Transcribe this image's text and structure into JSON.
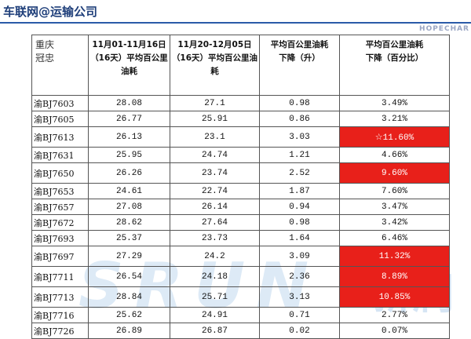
{
  "header": {
    "title": "车联网@运输公司",
    "logo": "HOPECHAR"
  },
  "watermark": {
    "latin": "SRUN",
    "chinese": "新润"
  },
  "table": {
    "columns": [
      [
        "重庆",
        "冠忠"
      ],
      [
        "11月01-11月16日",
        "（16天）平均百公里油耗"
      ],
      [
        "11月20-12月05日",
        "（16天）平均百公里油耗"
      ],
      [
        "平均百公里油耗",
        "下降（升）"
      ],
      [
        "平均百公里油耗",
        "下降（百分比）"
      ]
    ],
    "highlight_color": "#e8201a",
    "rows": [
      {
        "cells": [
          "渝BJ7603",
          "28.08",
          "27.1",
          "0.98",
          "3.49%"
        ],
        "highlight": false
      },
      {
        "cells": [
          "渝BJ7605",
          "26.77",
          "25.91",
          "0.86",
          "3.21%"
        ],
        "highlight": false
      },
      {
        "cells": [
          "渝BJ7613",
          "26.13",
          "23.1",
          "3.03",
          "☆11.60%"
        ],
        "highlight": true
      },
      {
        "cells": [
          "渝BJ7631",
          "25.95",
          "24.74",
          "1.21",
          "4.66%"
        ],
        "highlight": false
      },
      {
        "cells": [
          "渝BJ7650",
          "26.26",
          "23.74",
          "2.52",
          "9.60%"
        ],
        "highlight": true
      },
      {
        "cells": [
          "渝BJ7653",
          "24.61",
          "22.74",
          "1.87",
          "7.60%"
        ],
        "highlight": false
      },
      {
        "cells": [
          "渝BJ7657",
          "27.08",
          "26.14",
          "0.94",
          "3.47%"
        ],
        "highlight": false
      },
      {
        "cells": [
          "渝BJ7672",
          "28.62",
          "27.64",
          "0.98",
          "3.42%"
        ],
        "highlight": false
      },
      {
        "cells": [
          "渝BJ7693",
          "25.37",
          "23.73",
          "1.64",
          "6.46%"
        ],
        "highlight": false
      },
      {
        "cells": [
          "渝BJ7697",
          "27.29",
          "24.2",
          "3.09",
          "11.32%"
        ],
        "highlight": true
      },
      {
        "cells": [
          "渝BJ7711",
          "26.54",
          "24.18",
          "2.36",
          "8.89%"
        ],
        "highlight": true
      },
      {
        "cells": [
          "渝BJ7713",
          "28.84",
          "25.71",
          "3.13",
          "10.85%"
        ],
        "highlight": true
      },
      {
        "cells": [
          "渝BJ7716",
          "25.62",
          "24.91",
          "0.71",
          "2.77%"
        ],
        "highlight": false
      },
      {
        "cells": [
          "渝BJ7726",
          "26.89",
          "26.87",
          "0.02",
          "0.07%"
        ],
        "highlight": false
      }
    ]
  }
}
